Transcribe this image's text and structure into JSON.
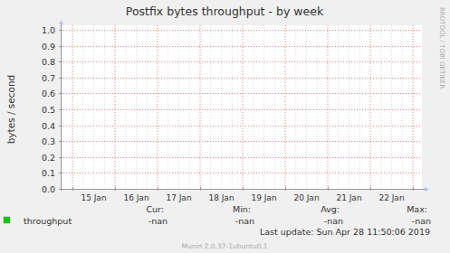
{
  "chart_data": {
    "type": "line",
    "title": "Postfix bytes throughput - by week",
    "y_label": "bytes / second",
    "categories": [
      "15 Jan",
      "16 Jan",
      "17 Jan",
      "18 Jan",
      "19 Jan",
      "20 Jan",
      "21 Jan",
      "22 Jan"
    ],
    "series": [
      {
        "name": "throughput",
        "color": "#00cc00",
        "values": [
          null,
          null,
          null,
          null,
          null,
          null,
          null,
          null
        ],
        "stats": [
          "-nan",
          "-nan",
          "-nan",
          "-nan"
        ]
      }
    ],
    "legend_headers": [
      "Cur:",
      "Min:",
      "Avg:",
      "Max:"
    ],
    "ylim": [
      0,
      1
    ],
    "yticks": [
      {
        "value": 0,
        "label": "0.0"
      },
      0.1,
      0.2,
      0.3,
      0.4,
      0.5,
      0.6,
      0.7,
      0.8,
      0.9,
      {
        "value": 1,
        "label": "1.0"
      }
    ],
    "grid": true,
    "last_update": "Last update: Sun Apr 28 11:50:06 2019",
    "watermark": "RRDTOOL / TOBI OETIKER",
    "footer": "Munin 2.0.37-1ubuntu0.1"
  }
}
